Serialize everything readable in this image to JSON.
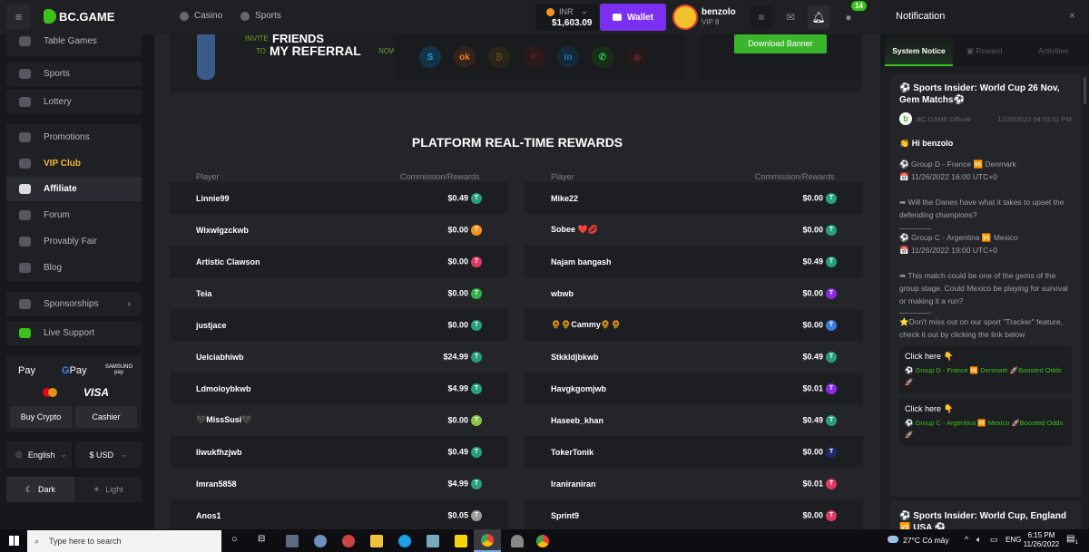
{
  "brand": {
    "name": "BC.GAME"
  },
  "header": {
    "nav": [
      {
        "label": "Casino",
        "icon": "casino-icon"
      },
      {
        "label": "Sports",
        "icon": "sports-icon"
      }
    ],
    "balance": {
      "currency": "INR",
      "amount": "$1,603.09"
    },
    "wallet_label": "Wallet",
    "user": {
      "name": "benzolo",
      "vip": "VIP 8"
    },
    "chat_badge": "14"
  },
  "sidebar": {
    "items": [
      {
        "label": "Table Games"
      },
      {
        "label": "Sports"
      },
      {
        "label": "Lottery"
      },
      {
        "label": "Promotions"
      },
      {
        "label": "VIP Club"
      },
      {
        "label": "Affiliate"
      },
      {
        "label": "Forum"
      },
      {
        "label": "Provably Fair"
      },
      {
        "label": "Blog"
      },
      {
        "label": "Sponsorships"
      },
      {
        "label": "Live Support"
      }
    ],
    "payments": {
      "apple": "Pay",
      "google": "Pay",
      "samsung": "SAMSUNG pay",
      "visa": "VISA"
    },
    "buy_crypto": "Buy Crypto",
    "cashier": "Cashier",
    "language": "English",
    "currency": "$ USD",
    "dark": "Dark",
    "light": "Light"
  },
  "banner": {
    "invite": "INVITE",
    "friends": "FRIENDS",
    "to": "TO",
    "my_referral": "MY REFERRAL",
    "now": "NOW",
    "download": "Download Banner"
  },
  "rewards": {
    "title": "PLATFORM REAL-TIME REWARDS",
    "col_player": "Player",
    "col_rewards": "Commission/Rewards",
    "left": [
      {
        "player": "Linnie99",
        "amount": "$0.49",
        "coin": "#26a17b"
      },
      {
        "player": "Wixwlgzckwb",
        "amount": "$0.00",
        "coin": "#f7931a"
      },
      {
        "player": "Artistic Clawson",
        "amount": "$0.00",
        "coin": "#e0385e"
      },
      {
        "player": "Teia",
        "amount": "$0.00",
        "coin": "#2fb34a"
      },
      {
        "player": "justjace",
        "amount": "$0.00",
        "coin": "#26a17b"
      },
      {
        "player": "Uelciabhiwb",
        "amount": "$24.99",
        "coin": "#26a17b"
      },
      {
        "player": "Ldmoloybkwb",
        "amount": "$4.99",
        "coin": "#26a17b"
      },
      {
        "player": "🖤MissSusi🖤",
        "amount": "$0.00",
        "coin": "#8bc34a"
      },
      {
        "player": "Ilwukfhzjwb",
        "amount": "$0.49",
        "coin": "#26a17b"
      },
      {
        "player": "Imran5858",
        "amount": "$4.99",
        "coin": "#26a17b"
      },
      {
        "player": "Anos1",
        "amount": "$0.05",
        "coin": "#9a9a9a"
      }
    ],
    "right": [
      {
        "player": "Mike22",
        "amount": "$0.00",
        "coin": "#26a17b"
      },
      {
        "player": "Sobee ❤️💋",
        "amount": "$0.00",
        "coin": "#26a17b"
      },
      {
        "player": "Najam bangash",
        "amount": "$0.49",
        "coin": "#26a17b"
      },
      {
        "player": "wbwb",
        "amount": "$0.00",
        "coin": "#8a2be2"
      },
      {
        "player": "🌻🌻Cammy🌻🌻",
        "amount": "$0.00",
        "coin": "#3d7bd9"
      },
      {
        "player": "Stkkldjbkwb",
        "amount": "$0.49",
        "coin": "#26a17b"
      },
      {
        "player": "Havgkgomjwb",
        "amount": "$0.01",
        "coin": "#8a2be2"
      },
      {
        "player": "Haseeb_khan",
        "amount": "$0.49",
        "coin": "#26a17b"
      },
      {
        "player": "TokerTonik",
        "amount": "$0.00",
        "coin": "#1a2a6c"
      },
      {
        "player": "Iraniraniran",
        "amount": "$0.01",
        "coin": "#e0385e"
      },
      {
        "player": "Sprint9",
        "amount": "$0.00",
        "coin": "#e0385e"
      }
    ]
  },
  "notification": {
    "title": "Notification",
    "tabs": [
      "System Notice",
      "Reward",
      "Activities"
    ],
    "post": {
      "title": "⚽ Sports Insider: World Cup 26 Nov, Gem Matchs⚽",
      "author": "BC.GAME Official",
      "time": "11/26/2022 04:53:51 PM",
      "greeting": "👏 Hi benzolo",
      "m1": "⚽ Group D - France 🆚 Denmark",
      "d1": "📅 11/26/2022 16:00 UTC+0",
      "q1": "➡ Will the Danes have what it takes to upset the defending champions?",
      "m2": "⚽ Group C - Argentina 🆚 Mexico",
      "d2": "📅 11/26/2022 19:00 UTC+0",
      "q2": "➡ This match could be one of the gems of the group stage. Could Mexico be playing for survival or making it a run?",
      "tracker": "⭐Don't miss out on our sport \"Tracker\" feature, check it out by clicking the link below",
      "click": "Click here 👇",
      "link1": "⚽ Group D - France 🆚 Denmark 🚀Boosted Odds🚀",
      "link2": "⚽ Group C - Argentina 🆚 Mexico 🚀Boosted Odds🚀"
    },
    "post2_title": "⚽ Sports Insider: World Cup, England 🆚 USA ⚽"
  },
  "taskbar": {
    "search_placeholder": "Type here to search",
    "weather": "27°C  Có mây",
    "lang": "ENG",
    "time": "6:15 PM",
    "date": "11/26/2022",
    "notif_count": "1"
  }
}
